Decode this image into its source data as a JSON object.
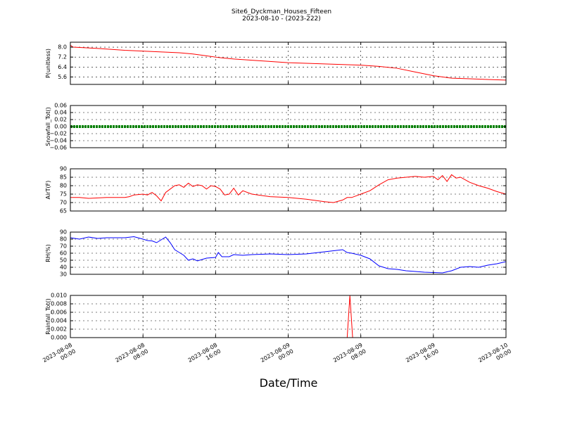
{
  "figure": {
    "title_line1": "Site6_Dyckman_Houses_Fifteen",
    "title_line2": "2023-08-10 - (2023-222)",
    "xlabel": "Date/Time",
    "x_tick_labels": [
      [
        "2023-08-08",
        "00:00"
      ],
      [
        "2023-08-08",
        "08:00"
      ],
      [
        "2023-08-08",
        "16:00"
      ],
      [
        "2023-08-09",
        "00:00"
      ],
      [
        "2023-08-09",
        "08:00"
      ],
      [
        "2023-08-09",
        "16:00"
      ],
      [
        "2023-08-10",
        "00:00"
      ]
    ]
  },
  "chart_data": [
    {
      "type": "line",
      "ylabel": "P(unitless)",
      "color": "#ff0000",
      "xlim": [
        0,
        48
      ],
      "ylim": [
        5.0,
        8.4
      ],
      "yticks": [
        5.6,
        6.4,
        7.2,
        8.0
      ],
      "ytick_labels": [
        "5.6",
        "6.4",
        "7.2",
        "8.0"
      ],
      "grid": true,
      "series": [
        {
          "x": [
            0,
            0.3,
            3,
            6,
            9,
            10.5,
            12,
            13.5,
            15,
            16.5,
            18,
            20,
            22,
            24,
            26,
            28,
            30,
            32,
            34,
            36,
            38,
            40,
            42,
            44,
            46,
            48
          ],
          "values": [
            8.15,
            8.0,
            7.9,
            7.75,
            7.65,
            7.6,
            7.55,
            7.45,
            7.3,
            7.15,
            7.05,
            6.95,
            6.85,
            6.75,
            6.7,
            6.65,
            6.6,
            6.55,
            6.45,
            6.3,
            6.0,
            5.7,
            5.5,
            5.45,
            5.4,
            5.35
          ]
        }
      ]
    },
    {
      "type": "line",
      "ylabel": "Snowfall_Tot()",
      "color": "#008000",
      "xlim": [
        0,
        48
      ],
      "ylim": [
        -0.06,
        0.06
      ],
      "yticks": [
        -0.06,
        -0.04,
        -0.02,
        0.0,
        0.02,
        0.04,
        0.06
      ],
      "ytick_labels": [
        "−0.06",
        "−0.04",
        "−0.02",
        "0.00",
        "0.02",
        "0.04",
        "0.06"
      ],
      "grid": true,
      "series": [
        {
          "x": [
            0,
            48
          ],
          "values": [
            0,
            0
          ]
        }
      ]
    },
    {
      "type": "line",
      "ylabel": "AirT(F)",
      "color": "#ff0000",
      "xlim": [
        0,
        48
      ],
      "ylim": [
        65,
        90
      ],
      "yticks": [
        65,
        70,
        75,
        80,
        85,
        90
      ],
      "ytick_labels": [
        "65",
        "70",
        "75",
        "80",
        "85",
        "90"
      ],
      "grid": true,
      "series": [
        {
          "x": [
            0,
            1,
            2,
            4,
            6,
            6.5,
            7,
            8,
            8.5,
            9,
            9.5,
            10,
            10.5,
            11,
            11.5,
            12,
            12.5,
            13,
            13.5,
            14,
            14.5,
            15,
            15.5,
            16,
            16.5,
            17,
            17.5,
            18,
            18.5,
            19,
            20,
            22,
            24,
            26,
            28,
            29,
            30,
            30.5,
            31,
            32,
            33,
            34,
            35,
            36,
            37,
            38,
            39,
            40,
            40.5,
            41,
            41.5,
            42,
            42.5,
            43,
            44,
            45,
            46,
            47,
            48
          ],
          "values": [
            73,
            73,
            72.5,
            73,
            73,
            73.5,
            74.5,
            75,
            74.5,
            76,
            74,
            71,
            76,
            78,
            80,
            80.5,
            79,
            81.5,
            79.5,
            80.5,
            80,
            78,
            80,
            79.5,
            78,
            74.5,
            75,
            78.5,
            74.5,
            77,
            75,
            73.5,
            73,
            72,
            70.5,
            70,
            71.5,
            73,
            73,
            75,
            77,
            80.5,
            83.5,
            84.5,
            85,
            85.5,
            85,
            85.5,
            83.5,
            86,
            82.5,
            86.5,
            84.5,
            85,
            82,
            80,
            78.5,
            76.5,
            75
          ]
        }
      ]
    },
    {
      "type": "line",
      "ylabel": "RH(%)",
      "color": "#0000ff",
      "xlim": [
        0,
        48
      ],
      "ylim": [
        30,
        90
      ],
      "yticks": [
        30,
        40,
        50,
        60,
        70,
        80,
        90
      ],
      "ytick_labels": [
        "30",
        "40",
        "50",
        "60",
        "70",
        "80",
        "90"
      ],
      "grid": true,
      "series": [
        {
          "x": [
            0,
            1,
            2,
            3,
            4,
            6,
            7,
            8,
            8.5,
            9,
            9.5,
            10,
            10.5,
            11,
            11.5,
            12,
            12.5,
            13,
            13.5,
            14,
            15,
            16,
            16.3,
            16.7,
            17.5,
            18,
            19,
            20,
            22,
            24,
            26,
            28,
            30,
            30.5,
            31,
            32,
            33,
            34,
            35,
            36,
            37,
            38,
            39,
            40,
            41,
            42,
            43,
            44,
            45,
            46,
            47,
            48
          ],
          "values": [
            82,
            80,
            83,
            81,
            82,
            82,
            83.5,
            80,
            78,
            77.5,
            75,
            79,
            83,
            75,
            65,
            61,
            57,
            50,
            52,
            49,
            53,
            54,
            61,
            55,
            55,
            58,
            57,
            58,
            59,
            58,
            59,
            62,
            65,
            61,
            60,
            57,
            52,
            42,
            38,
            37,
            35,
            34,
            33,
            32.5,
            32,
            35,
            40,
            41,
            40,
            43,
            45,
            48
          ]
        }
      ]
    },
    {
      "type": "line",
      "ylabel": "Rainfall_Tot()",
      "color": "#ff0000",
      "xlim": [
        0,
        48
      ],
      "ylim": [
        0,
        0.01
      ],
      "yticks": [
        0.0,
        0.002,
        0.004,
        0.006,
        0.008,
        0.01
      ],
      "ytick_labels": [
        "0.000",
        "0.002",
        "0.004",
        "0.006",
        "0.008",
        "0.010"
      ],
      "grid": true,
      "series": [
        {
          "x": [
            0,
            30.5,
            30.8,
            31.1,
            48
          ],
          "values": [
            0,
            0,
            0.01,
            0,
            0
          ]
        }
      ]
    }
  ]
}
